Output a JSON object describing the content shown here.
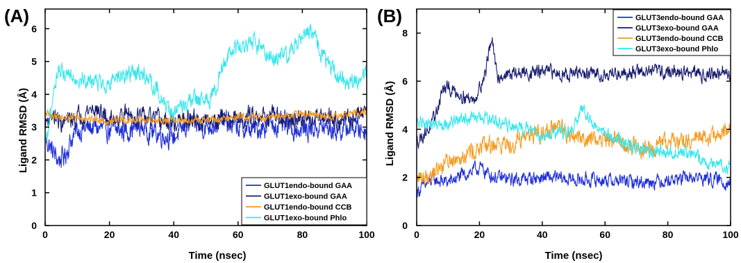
{
  "figure": {
    "panels": [
      {
        "label": "(A)",
        "xlabel": "Time (nsec)",
        "ylabel": "Ligand RMSD (Å)"
      },
      {
        "label": "(B)",
        "xlabel": "Time (nsec)",
        "ylabel": "Ligand RMSD (Å)"
      }
    ]
  },
  "chart_data": [
    {
      "type": "line",
      "panel": "(A)",
      "xlabel": "Time (nsec)",
      "ylabel": "Ligand RMSD (Å)",
      "xlim": [
        0,
        100
      ],
      "ylim": [
        0,
        6.6
      ],
      "xticks": [
        0,
        20,
        40,
        60,
        80,
        100
      ],
      "yticks": [
        0,
        1,
        2,
        3,
        4,
        5,
        6
      ],
      "legend_position": "bottom-right",
      "grid": false,
      "series": [
        {
          "name": "GLUT1endo-bound GAA",
          "color": "#1f2fd6",
          "noise": 0.35,
          "x": [
            0,
            1,
            2,
            4,
            6,
            8,
            10,
            15,
            20,
            25,
            30,
            35,
            40,
            45,
            50,
            55,
            60,
            65,
            70,
            75,
            80,
            85,
            90,
            95,
            100
          ],
          "y": [
            2.6,
            2.5,
            2.3,
            2.0,
            2.1,
            2.6,
            2.9,
            3.0,
            2.9,
            2.9,
            3.0,
            2.8,
            2.7,
            3.1,
            3.0,
            3.2,
            3.0,
            2.9,
            3.1,
            3.0,
            2.9,
            3.0,
            2.9,
            3.0,
            2.9
          ]
        },
        {
          "name": "GLUT1exo-bound GAA",
          "color": "#161b6e",
          "noise": 0.3,
          "x": [
            0,
            2,
            5,
            10,
            15,
            20,
            25,
            30,
            35,
            40,
            45,
            50,
            55,
            60,
            65,
            70,
            75,
            80,
            85,
            90,
            95,
            100
          ],
          "y": [
            3.1,
            3.4,
            3.1,
            3.3,
            3.6,
            3.2,
            3.4,
            3.3,
            3.2,
            3.1,
            3.2,
            3.1,
            3.3,
            3.2,
            3.4,
            3.3,
            3.2,
            3.2,
            3.4,
            3.3,
            3.2,
            3.6
          ]
        },
        {
          "name": "GLUT1endo-bound CCB",
          "color": "#f59a1e",
          "noise": 0.13,
          "x": [
            0,
            5,
            10,
            20,
            30,
            40,
            50,
            60,
            70,
            80,
            90,
            100
          ],
          "y": [
            3.4,
            3.3,
            3.3,
            3.2,
            3.2,
            3.2,
            3.2,
            3.3,
            3.3,
            3.4,
            3.3,
            3.5
          ]
        },
        {
          "name": "GLUT1exo-bound Phlo",
          "color": "#38e6ec",
          "noise": 0.28,
          "x": [
            0,
            1,
            2,
            3,
            4,
            5,
            8,
            10,
            15,
            20,
            25,
            30,
            35,
            38,
            40,
            45,
            50,
            52,
            55,
            57,
            60,
            65,
            70,
            75,
            80,
            83,
            86,
            90,
            95,
            100
          ],
          "y": [
            2.4,
            2.8,
            3.5,
            4.3,
            4.8,
            4.6,
            4.7,
            4.5,
            4.4,
            4.3,
            4.6,
            4.7,
            4.1,
            3.6,
            3.4,
            3.8,
            3.8,
            3.9,
            4.8,
            5.3,
            5.4,
            5.6,
            5.1,
            5.2,
            5.8,
            5.9,
            5.3,
            4.6,
            4.4,
            4.6
          ]
        }
      ]
    },
    {
      "type": "line",
      "panel": "(B)",
      "xlabel": "Time (nsec)",
      "ylabel": "Ligand RMSD (Å)",
      "xlim": [
        0,
        100
      ],
      "ylim": [
        0,
        9
      ],
      "xticks": [
        0,
        20,
        40,
        60,
        80,
        100
      ],
      "yticks": [
        0,
        2,
        4,
        6,
        8
      ],
      "legend_position": "top-right",
      "grid": false,
      "series": [
        {
          "name": "GLUT3endo-bound GAA",
          "color": "#1f2fd6",
          "noise": 0.3,
          "x": [
            0,
            2,
            5,
            10,
            15,
            20,
            25,
            30,
            40,
            50,
            60,
            70,
            80,
            90,
            100
          ],
          "y": [
            1.4,
            1.6,
            1.9,
            1.8,
            2.1,
            2.4,
            2.0,
            1.9,
            2.0,
            1.9,
            1.9,
            1.8,
            1.9,
            2.0,
            1.8
          ]
        },
        {
          "name": "GLUT3exo-bound GAA",
          "color": "#161b6e",
          "noise": 0.3,
          "x": [
            0,
            3,
            5,
            7,
            8,
            10,
            15,
            18,
            20,
            22,
            23,
            24,
            25,
            26,
            30,
            40,
            50,
            60,
            70,
            80,
            90,
            100
          ],
          "y": [
            3.5,
            3.9,
            4.2,
            5.0,
            5.6,
            5.7,
            5.4,
            5.2,
            5.7,
            6.4,
            7.3,
            7.8,
            6.6,
            6.2,
            6.3,
            6.4,
            6.3,
            6.3,
            6.4,
            6.4,
            6.3,
            6.3
          ]
        },
        {
          "name": "GLUT3endo-bound CCB",
          "color": "#f59a1e",
          "noise": 0.4,
          "x": [
            0,
            5,
            10,
            15,
            20,
            25,
            30,
            35,
            40,
            45,
            50,
            55,
            60,
            65,
            70,
            75,
            80,
            85,
            90,
            95,
            100
          ],
          "y": [
            1.9,
            2.2,
            2.7,
            3.0,
            3.2,
            3.4,
            3.4,
            3.8,
            3.9,
            4.0,
            3.7,
            3.6,
            3.6,
            3.5,
            3.2,
            3.2,
            3.4,
            3.6,
            3.6,
            3.7,
            3.9
          ]
        },
        {
          "name": "GLUT3exo-bound Phlo",
          "color": "#38e6ec",
          "noise": 0.28,
          "x": [
            0,
            5,
            10,
            15,
            20,
            25,
            30,
            35,
            40,
            45,
            50,
            53,
            55,
            60,
            65,
            70,
            75,
            80,
            85,
            90,
            95,
            100
          ],
          "y": [
            4.3,
            4.2,
            4.3,
            4.4,
            4.5,
            4.3,
            4.1,
            4.0,
            3.7,
            3.9,
            4.0,
            4.9,
            4.3,
            3.8,
            3.5,
            3.2,
            3.1,
            3.0,
            3.0,
            2.8,
            2.6,
            2.4
          ]
        }
      ]
    }
  ]
}
